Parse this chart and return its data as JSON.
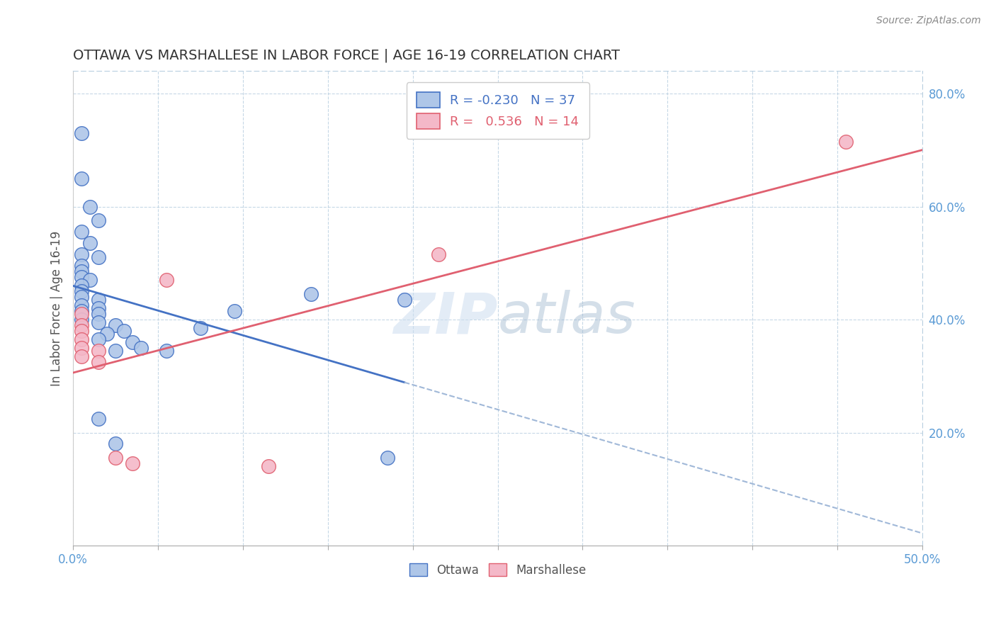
{
  "title": "OTTAWA VS MARSHALLESE IN LABOR FORCE | AGE 16-19 CORRELATION CHART",
  "source": "Source: ZipAtlas.com",
  "ylabel": "In Labor Force | Age 16-19",
  "xlim": [
    0.0,
    0.5
  ],
  "ylim": [
    0.0,
    0.84
  ],
  "xtick_vals": [
    0.0,
    0.05,
    0.1,
    0.15,
    0.2,
    0.25,
    0.3,
    0.35,
    0.4,
    0.45,
    0.5
  ],
  "xtick_edge_labels": {
    "0": "0.0%",
    "10": "50.0%"
  },
  "ytick_vals": [
    0.2,
    0.4,
    0.6,
    0.8
  ],
  "ytick_labels": [
    "20.0%",
    "40.0%",
    "60.0%",
    "80.0%"
  ],
  "legend_r_ottawa": "-0.230",
  "legend_n_ottawa": "37",
  "legend_r_marsh": "0.536",
  "legend_n_marsh": "14",
  "ottawa_color": "#aec6e8",
  "marsh_color": "#f4b8c8",
  "ottawa_line_color": "#4472c4",
  "marsh_line_color": "#e06070",
  "ottawa_points": [
    [
      0.005,
      0.73
    ],
    [
      0.005,
      0.65
    ],
    [
      0.01,
      0.6
    ],
    [
      0.015,
      0.575
    ],
    [
      0.005,
      0.555
    ],
    [
      0.01,
      0.535
    ],
    [
      0.005,
      0.515
    ],
    [
      0.015,
      0.51
    ],
    [
      0.005,
      0.495
    ],
    [
      0.005,
      0.485
    ],
    [
      0.005,
      0.475
    ],
    [
      0.01,
      0.47
    ],
    [
      0.005,
      0.46
    ],
    [
      0.005,
      0.45
    ],
    [
      0.005,
      0.44
    ],
    [
      0.015,
      0.435
    ],
    [
      0.005,
      0.425
    ],
    [
      0.015,
      0.42
    ],
    [
      0.005,
      0.415
    ],
    [
      0.015,
      0.41
    ],
    [
      0.005,
      0.4
    ],
    [
      0.015,
      0.395
    ],
    [
      0.025,
      0.39
    ],
    [
      0.03,
      0.38
    ],
    [
      0.02,
      0.375
    ],
    [
      0.015,
      0.365
    ],
    [
      0.035,
      0.36
    ],
    [
      0.04,
      0.35
    ],
    [
      0.025,
      0.345
    ],
    [
      0.055,
      0.345
    ],
    [
      0.075,
      0.385
    ],
    [
      0.095,
      0.415
    ],
    [
      0.14,
      0.445
    ],
    [
      0.195,
      0.435
    ],
    [
      0.015,
      0.225
    ],
    [
      0.025,
      0.18
    ],
    [
      0.185,
      0.155
    ]
  ],
  "marsh_points": [
    [
      0.005,
      0.41
    ],
    [
      0.005,
      0.39
    ],
    [
      0.005,
      0.38
    ],
    [
      0.005,
      0.365
    ],
    [
      0.005,
      0.35
    ],
    [
      0.015,
      0.345
    ],
    [
      0.005,
      0.335
    ],
    [
      0.015,
      0.325
    ],
    [
      0.025,
      0.155
    ],
    [
      0.035,
      0.145
    ],
    [
      0.055,
      0.47
    ],
    [
      0.215,
      0.515
    ],
    [
      0.455,
      0.715
    ],
    [
      0.115,
      0.14
    ]
  ]
}
